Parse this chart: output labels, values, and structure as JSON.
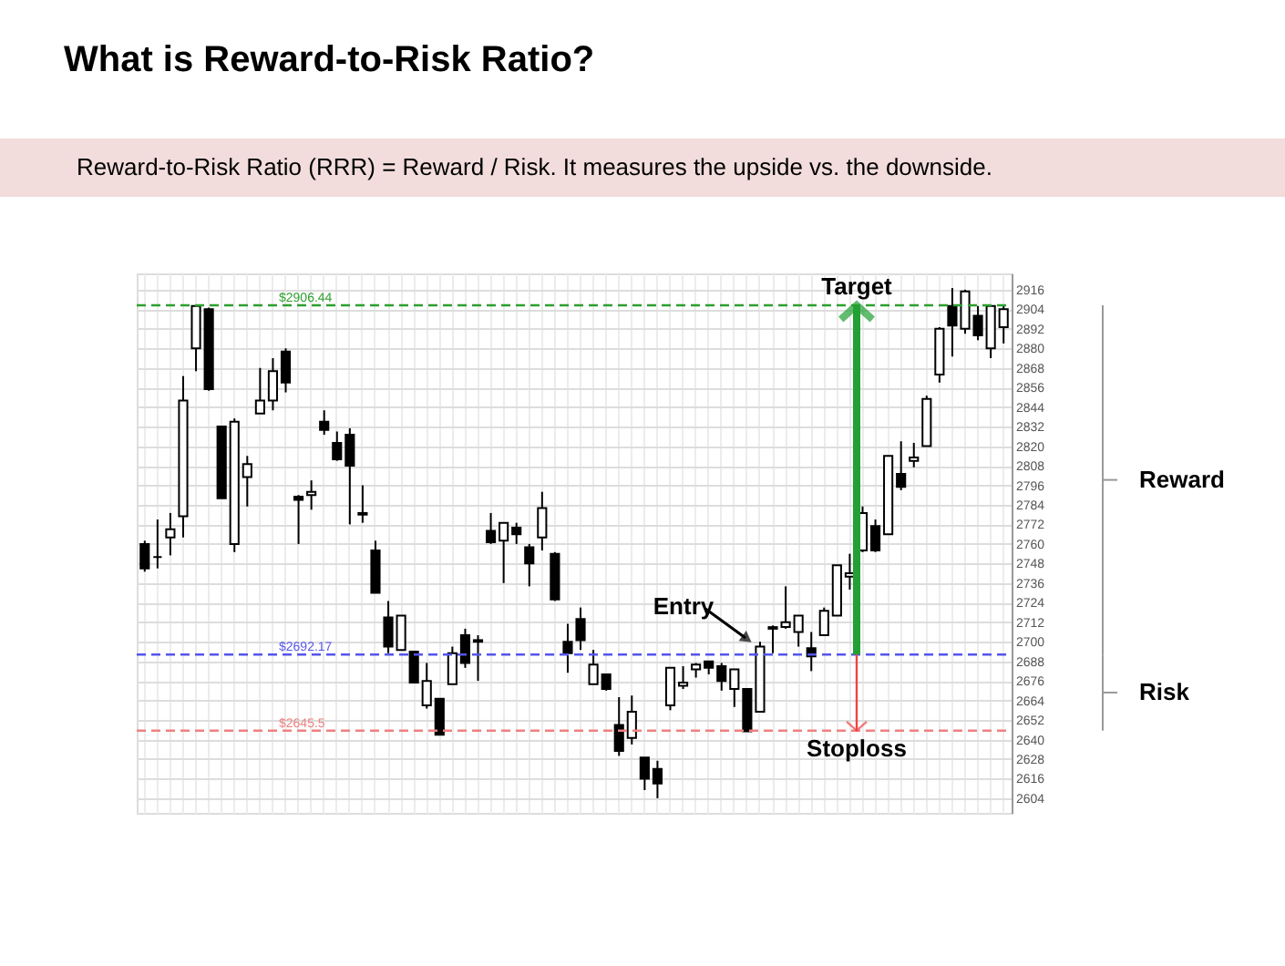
{
  "chart_data": {
    "type": "candlestick",
    "title": "What is Reward-to-Risk Ratio?",
    "subtitle": "Reward-to-Risk Ratio (RRR) = Reward / Risk. It measures the upside vs. the downside.",
    "categories": [
      null,
      null,
      null,
      null,
      null,
      null,
      null,
      null,
      null,
      null,
      null,
      null,
      null,
      null,
      null,
      null,
      null,
      null,
      null,
      null,
      null,
      null,
      null,
      null,
      null,
      null,
      null,
      null,
      null,
      null,
      null,
      null,
      null,
      null,
      null,
      null,
      null,
      null,
      null,
      null,
      null,
      null,
      null,
      null,
      null,
      null,
      null,
      null,
      null,
      null,
      null,
      null,
      null,
      null,
      null,
      null,
      null,
      null,
      null,
      null,
      null,
      null,
      null,
      null,
      null,
      null,
      null,
      null
    ],
    "ohlc": [
      [
        2760,
        2762,
        2743,
        2745
      ],
      [
        2752,
        2775,
        2745,
        2752
      ],
      [
        2764,
        2779,
        2753,
        2769
      ],
      [
        2777,
        2863,
        2764,
        2848
      ],
      [
        2880,
        2907,
        2866,
        2906
      ],
      [
        2904,
        2905,
        2854,
        2855
      ],
      [
        2832,
        2832,
        2788,
        2788
      ],
      [
        2760,
        2837,
        2755,
        2835
      ],
      [
        2801,
        2814,
        2783,
        2809
      ],
      [
        2840,
        2868,
        2840,
        2848
      ],
      [
        2848,
        2874,
        2842,
        2866
      ],
      [
        2878,
        2880,
        2853,
        2859
      ],
      [
        2789,
        2790,
        2760,
        2787
      ],
      [
        2790,
        2799,
        2781,
        2792
      ],
      [
        2835,
        2842,
        2827,
        2830
      ],
      [
        2822,
        2829,
        2811,
        2812
      ],
      [
        2827,
        2831,
        2772,
        2808
      ],
      [
        2779,
        2796,
        2773,
        2778
      ],
      [
        2756,
        2762,
        2730,
        2730
      ],
      [
        2715,
        2725,
        2693,
        2697
      ],
      [
        2695,
        2716,
        2695,
        2716
      ],
      [
        2694,
        2694,
        2675,
        2675
      ],
      [
        2661,
        2687,
        2659,
        2676
      ],
      [
        2665,
        2665,
        2643,
        2643
      ],
      [
        2674,
        2697,
        2674,
        2693
      ],
      [
        2704,
        2708,
        2684,
        2687
      ],
      [
        2700,
        2704,
        2676,
        2701
      ],
      [
        2768,
        2779,
        2760,
        2761
      ],
      [
        2762,
        2773,
        2736,
        2773
      ],
      [
        2770,
        2773,
        2760,
        2766
      ],
      [
        2758,
        2760,
        2734,
        2748
      ],
      [
        2764,
        2792,
        2756,
        2782
      ],
      [
        2754,
        2755,
        2725,
        2726
      ],
      [
        2700,
        2711,
        2681,
        2693
      ],
      [
        2714,
        2721,
        2695,
        2701
      ],
      [
        2674,
        2695,
        2674,
        2686
      ],
      [
        2680,
        2680,
        2670,
        2671
      ],
      [
        2649,
        2666,
        2630,
        2633
      ],
      [
        2641,
        2667,
        2637,
        2657
      ],
      [
        2629,
        2629,
        2609,
        2616
      ],
      [
        2622,
        2627,
        2604,
        2613
      ],
      [
        2661,
        2684,
        2658,
        2684
      ],
      [
        2673,
        2685,
        2671,
        2675
      ],
      [
        2683,
        2687,
        2678,
        2686
      ],
      [
        2688,
        2688,
        2680,
        2684
      ],
      [
        2685,
        2687,
        2670,
        2676
      ],
      [
        2671,
        2683,
        2660,
        2683
      ],
      [
        2671,
        2671,
        2645,
        2645
      ],
      [
        2657,
        2700,
        2657,
        2697
      ],
      [
        2708,
        2710,
        2693,
        2709
      ],
      [
        2709,
        2734,
        2708,
        2712
      ],
      [
        2706,
        2716,
        2697,
        2716
      ],
      [
        2696,
        2706,
        2682,
        2691
      ],
      [
        2704,
        2721,
        2704,
        2719
      ],
      [
        2716,
        2747,
        2716,
        2747
      ],
      [
        2740,
        2754,
        2732,
        2742
      ],
      [
        2756,
        2783,
        2755,
        2779
      ],
      [
        2771,
        2775,
        2755,
        2756
      ],
      [
        2766,
        2814,
        2766,
        2814
      ],
      [
        2803,
        2823,
        2793,
        2795
      ],
      [
        2811,
        2822,
        2807,
        2813
      ],
      [
        2820,
        2851,
        2820,
        2849
      ],
      [
        2864,
        2893,
        2859,
        2892
      ],
      [
        2906,
        2917,
        2875,
        2894
      ],
      [
        2892,
        2916,
        2889,
        2915
      ],
      [
        2900,
        2906,
        2885,
        2888
      ],
      [
        2880,
        2906,
        2874,
        2906
      ],
      [
        2893,
        2906,
        2883,
        2904
      ]
    ],
    "ylim": [
      2595,
      2926
    ],
    "yticks": [
      2604,
      2616,
      2628,
      2640,
      2652,
      2664,
      2676,
      2688,
      2700,
      2712,
      2724,
      2736,
      2748,
      2760,
      2772,
      2784,
      2796,
      2808,
      2820,
      2832,
      2844,
      2856,
      2868,
      2880,
      2892,
      2904,
      2916
    ],
    "grid": true,
    "tick_labels": "y",
    "ref_lines": [
      {
        "axis": "y",
        "value": 2906.44,
        "label": "$2906.44",
        "color": "#2ca02c",
        "line_style": "dashed"
      },
      {
        "axis": "y",
        "value": 2692.17,
        "label": "$2692.17",
        "color": "#5555ee",
        "line_style": "dashed"
      },
      {
        "axis": "y",
        "value": 2645.5,
        "label": "$2645.5",
        "color": "#f08080",
        "line_style": "dashed"
      }
    ],
    "annotations": [
      {
        "text": "Target",
        "y": 2906.44
      },
      {
        "text": "Entry",
        "y": 2692.17
      },
      {
        "text": "Stoploss",
        "y": 2645.5
      },
      "Reward",
      "Risk"
    ]
  }
}
